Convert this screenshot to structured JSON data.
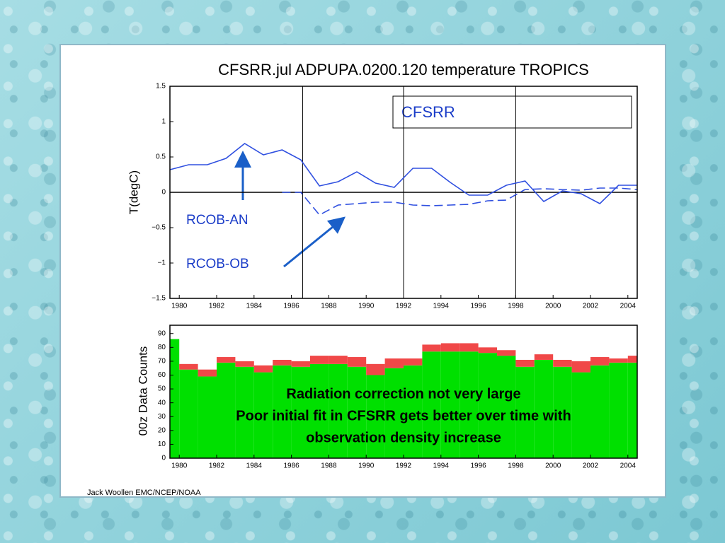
{
  "chart_data": [
    {
      "type": "line",
      "title": "CFSRR.jul ADPUPA.0200.120 temperature TROPICS",
      "ylabel": "T(degC)",
      "legend": "CFSRR",
      "x": [
        1979.5,
        1980.5,
        1981.5,
        1982.5,
        1983.5,
        1984.5,
        1985.5,
        1986.5,
        1987.5,
        1988.5,
        1989.5,
        1990.5,
        1991.5,
        1992.5,
        1993.5,
        1994.5,
        1995.5,
        1996.5,
        1997.5,
        1998.5,
        1999.5,
        2000.5,
        2001.5,
        2002.5,
        2003.5,
        2004.5
      ],
      "series": [
        {
          "name": "RCOB-AN",
          "color": "#3050e0",
          "dashed": false,
          "values": [
            0.32,
            0.39,
            0.39,
            0.48,
            0.69,
            0.53,
            0.6,
            0.46,
            0.09,
            0.15,
            0.29,
            0.13,
            0.07,
            0.34,
            0.34,
            0.14,
            -0.04,
            -0.04,
            0.1,
            0.16,
            -0.13,
            0.02,
            -0.02,
            -0.16,
            0.1,
            0.1
          ]
        },
        {
          "name": "RCOB-OB",
          "color": "#3050e0",
          "dashed": true,
          "values": [
            null,
            null,
            null,
            null,
            null,
            null,
            0,
            0,
            -0.32,
            -0.18,
            -0.16,
            -0.14,
            -0.14,
            -0.18,
            -0.19,
            -0.18,
            -0.17,
            -0.12,
            -0.11,
            0.04,
            0.05,
            0.04,
            0.03,
            0.06,
            0.06,
            0.04
          ]
        }
      ],
      "xlim": [
        1979.5,
        2004.5
      ],
      "xticks": [
        1980,
        1982,
        1984,
        1986,
        1988,
        1990,
        1992,
        1994,
        1996,
        1998,
        2000,
        2002,
        2004
      ],
      "ylim": [
        -1.5,
        1.5
      ],
      "yticks": [
        {
          "value": -1.5,
          "label": "−1.5"
        },
        {
          "value": -1,
          "label": "−1"
        },
        {
          "value": -0.5,
          "label": "−0.5"
        },
        0,
        0.5,
        1,
        1.5
      ],
      "vlines": [
        1986.6,
        1992,
        1998
      ],
      "hline": 0
    },
    {
      "type": "stacked_histogram",
      "ylabel": "00z Data Counts",
      "bins": [
        1979.5,
        1980,
        1981,
        1982,
        1983,
        1984,
        1985,
        1986,
        1987,
        1988,
        1989,
        1990,
        1991,
        1992,
        1993,
        1994,
        1995,
        1996,
        1997,
        1998,
        1999,
        2000,
        2001,
        2002,
        2003,
        2004,
        2004.5
      ],
      "series": [
        {
          "color": "#00e000",
          "values": [
            86,
            64,
            59,
            69,
            66,
            62,
            67,
            66,
            68,
            68,
            66,
            60,
            65,
            67,
            77,
            77,
            77,
            76,
            74,
            66,
            71,
            66,
            62,
            67,
            69,
            69
          ]
        },
        {
          "color": "#f04848",
          "values": [
            0,
            4,
            5,
            4,
            4,
            5,
            4,
            4,
            6,
            6,
            7,
            8,
            7,
            5,
            5,
            6,
            6,
            4,
            4,
            5,
            4,
            5,
            8,
            6,
            3,
            5
          ]
        }
      ],
      "xlim": [
        1979.5,
        2004.5
      ],
      "xticks": [
        1980,
        1982,
        1984,
        1986,
        1988,
        1990,
        1992,
        1994,
        1996,
        1998,
        2000,
        2002,
        2004
      ],
      "ylim": [
        0,
        96
      ],
      "yticks": [
        0,
        10,
        20,
        30,
        40,
        50,
        60,
        70,
        80,
        90
      ],
      "annotations": [
        "Radiation correction not very large",
        "Poor initial fit in CFSRR gets better over time with",
        "observation density increase"
      ]
    }
  ],
  "footer": "Jack Woollen EMC/NCEP/NOAA"
}
